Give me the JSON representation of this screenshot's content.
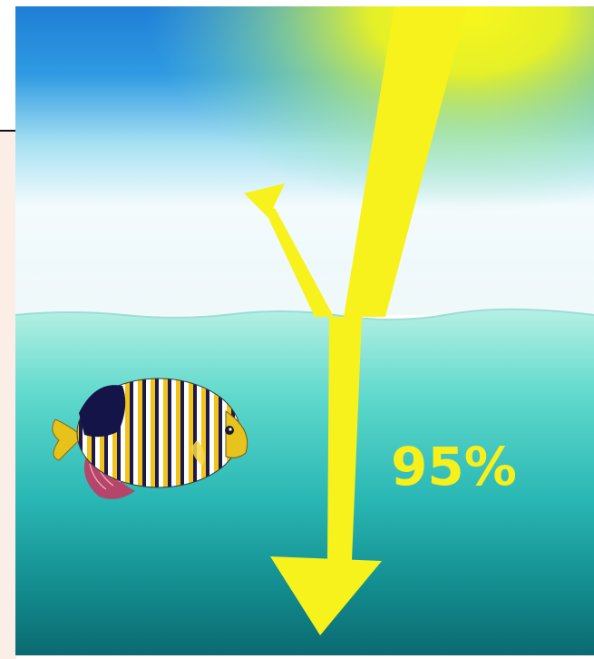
{
  "illustration": {
    "transmitted_percent_label": "95%"
  },
  "colors": {
    "sun": "#f5f51a",
    "arrow": "#f7f21c",
    "sky_top": "#2a8fde",
    "water_top": "#a6ece0",
    "water_bottom": "#0d6f74",
    "side_panel": "#faeee6"
  }
}
